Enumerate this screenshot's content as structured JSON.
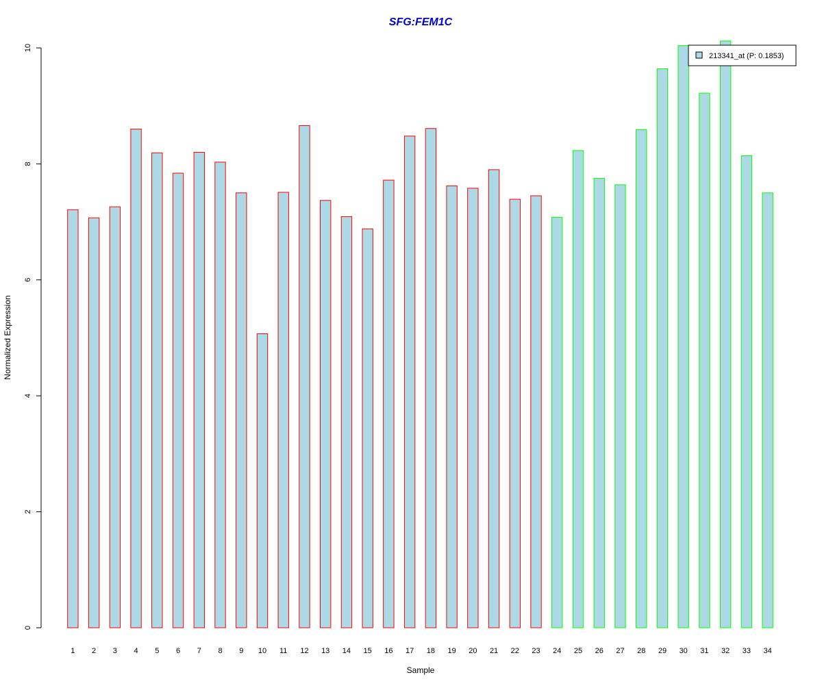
{
  "chart_data": {
    "type": "bar",
    "title": "SFG:FEM1C",
    "xlabel": "Sample",
    "ylabel": "Normalized Expression",
    "ylim": [
      0,
      10
    ],
    "yticks": [
      0,
      2,
      4,
      6,
      8,
      10
    ],
    "categories": [
      "1",
      "2",
      "3",
      "4",
      "5",
      "6",
      "7",
      "8",
      "9",
      "10",
      "11",
      "12",
      "13",
      "14",
      "15",
      "16",
      "17",
      "18",
      "19",
      "20",
      "21",
      "22",
      "23",
      "24",
      "25",
      "26",
      "27",
      "28",
      "29",
      "30",
      "31",
      "32",
      "33",
      "34"
    ],
    "values": [
      7.21,
      7.07,
      7.26,
      8.6,
      8.19,
      7.84,
      8.2,
      8.03,
      7.5,
      5.07,
      7.51,
      8.66,
      7.37,
      7.09,
      6.88,
      7.72,
      8.48,
      8.61,
      7.62,
      7.58,
      7.9,
      7.39,
      7.45,
      7.08,
      8.23,
      7.75,
      7.64,
      8.59,
      9.64,
      10.04,
      9.22,
      10.12,
      8.14,
      7.5
    ],
    "groups": [
      "a",
      "a",
      "a",
      "a",
      "a",
      "a",
      "a",
      "a",
      "a",
      "a",
      "a",
      "a",
      "a",
      "a",
      "a",
      "a",
      "a",
      "a",
      "a",
      "a",
      "a",
      "a",
      "a",
      "b",
      "b",
      "b",
      "b",
      "b",
      "b",
      "b",
      "b",
      "b",
      "b",
      "b"
    ],
    "legend": {
      "label": "213341_at (P: 0.1853)",
      "position": "top-right"
    },
    "grid": false
  },
  "colors": {
    "title": "#0000CC",
    "bar_fill": "#ADD8E6",
    "group_a_border": "#FF0000",
    "group_b_border": "#00FF00",
    "axis": "#000000"
  }
}
